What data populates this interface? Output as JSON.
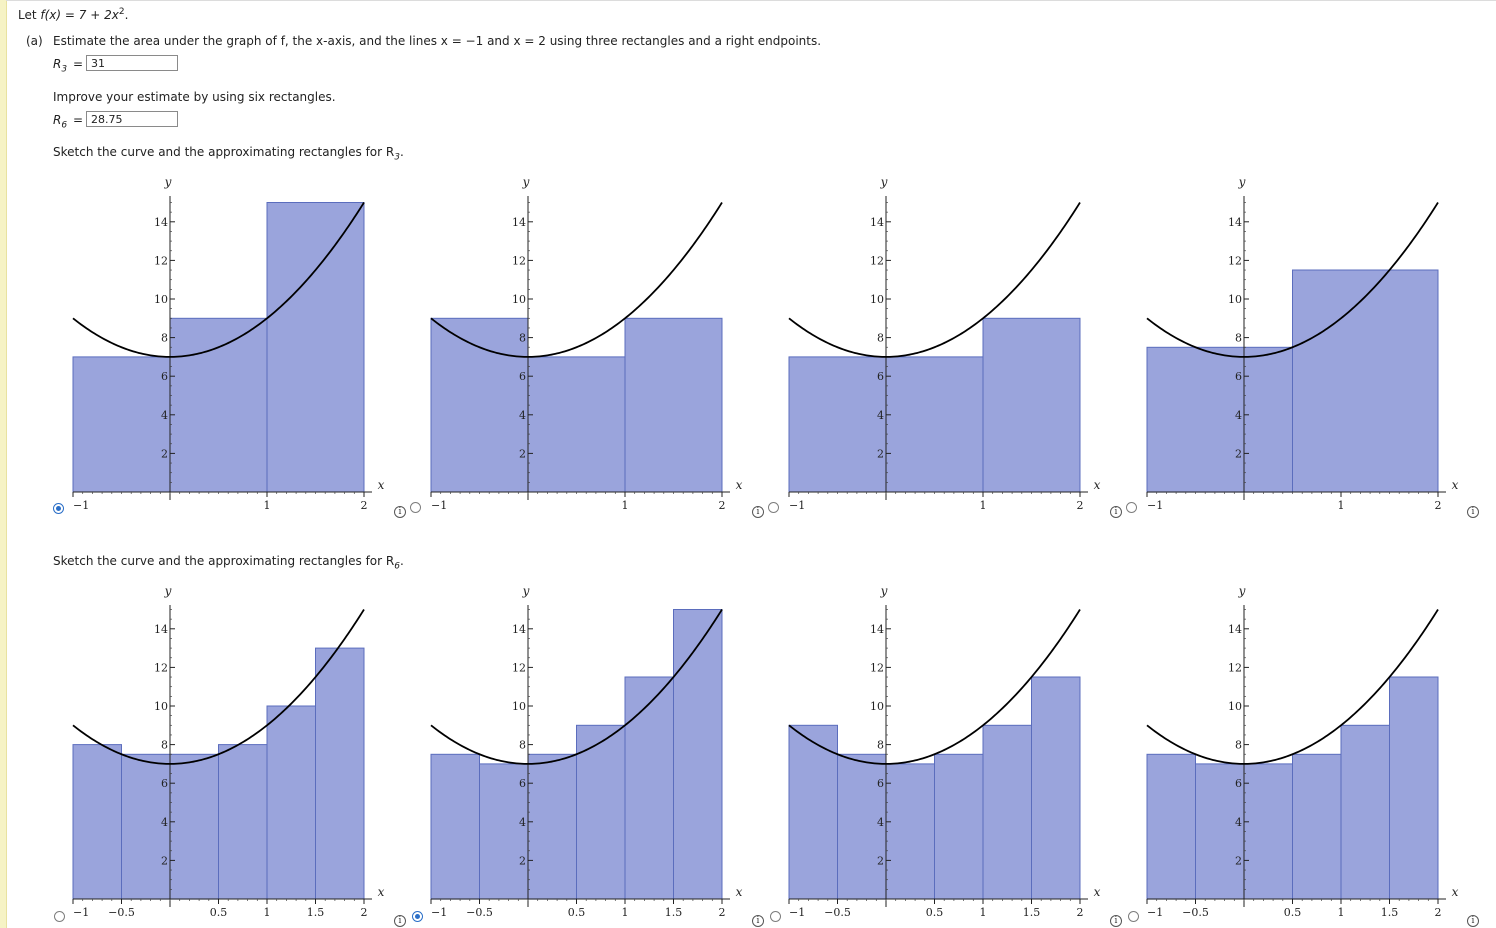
{
  "question": {
    "intro_prefix": "Let ",
    "intro_formula": "f(x) = 7 + 2x",
    "intro_exp": "2",
    "intro_suffix": ".",
    "part_a_label": "(a)",
    "part_a_text": "Estimate the area under the graph of f, the x-axis, and the lines x = −1 and x = 2 using three rectangles and a right endpoints.",
    "r3_label": "R",
    "r3_sub": "3",
    "r3_eq": "=",
    "r3_value": "31",
    "improve_text": "Improve your estimate by using six rectangles.",
    "r6_label": "R",
    "r6_sub": "6",
    "r6_eq": "=",
    "r6_value": "28.75",
    "sketch3_text": "Sketch the curve and the approximating rectangles for R",
    "sketch3_sub": "3",
    "sketch6_text": "Sketch the curve and the approximating rectangles for R",
    "sketch6_sub": "6",
    "period": "."
  },
  "info_glyph": "i",
  "colors": {
    "rect_fill": "#9aa4dc",
    "rect_stroke": "#5b6dbd",
    "curve": "#000000",
    "radio_selected": "#2b6fc8"
  },
  "chart_data": [
    {
      "type": "bar",
      "function": "7 + 2x^2",
      "xlim": [
        -1,
        2
      ],
      "ylim": [
        0,
        15
      ],
      "xlabel": "x",
      "ylabel": "y",
      "xticks": [
        -1,
        1,
        2
      ],
      "yticks": [
        2,
        4,
        6,
        8,
        10,
        12,
        14
      ],
      "rectangles": [
        {
          "x0": -1,
          "x1": 0,
          "height": 7
        },
        {
          "x0": 0,
          "x1": 1,
          "height": 9
        },
        {
          "x0": 1,
          "x1": 2,
          "height": 15
        }
      ],
      "selected": true
    },
    {
      "type": "bar",
      "function": "7 + 2x^2",
      "xlim": [
        -1,
        2
      ],
      "ylim": [
        0,
        15
      ],
      "xlabel": "x",
      "ylabel": "y",
      "xticks": [
        -1,
        1,
        2
      ],
      "yticks": [
        2,
        4,
        6,
        8,
        10,
        12,
        14
      ],
      "rectangles": [
        {
          "x0": -1,
          "x1": 0,
          "height": 9
        },
        {
          "x0": 0,
          "x1": 1,
          "height": 7
        },
        {
          "x0": 1,
          "x1": 2,
          "height": 9
        }
      ],
      "selected": false
    },
    {
      "type": "bar",
      "function": "7 + 2x^2",
      "xlim": [
        -1,
        2
      ],
      "ylim": [
        0,
        15
      ],
      "xlabel": "x",
      "ylabel": "y",
      "xticks": [
        -1,
        1,
        2
      ],
      "yticks": [
        2,
        4,
        6,
        8,
        10,
        12,
        14
      ],
      "rectangles": [
        {
          "x0": -1,
          "x1": 0,
          "height": 7
        },
        {
          "x0": 0,
          "x1": 1,
          "height": 7
        },
        {
          "x0": 1,
          "x1": 2,
          "height": 9
        }
      ],
      "selected": false
    },
    {
      "type": "bar",
      "function": "7 + 2x^2",
      "xlim": [
        -1,
        2
      ],
      "ylim": [
        0,
        15
      ],
      "xlabel": "x",
      "ylabel": "y",
      "xticks": [
        -1,
        1,
        2
      ],
      "yticks": [
        2,
        4,
        6,
        8,
        10,
        12,
        14
      ],
      "rectangles": [
        {
          "x0": -1,
          "x1": 0.5,
          "height": 7.5
        },
        {
          "x0": 0.5,
          "x1": 2,
          "height": 11.5
        }
      ],
      "selected": false
    },
    {
      "type": "bar",
      "function": "7 + 2x^2",
      "xlim": [
        -1,
        2
      ],
      "ylim": [
        0,
        15
      ],
      "xlabel": "x",
      "ylabel": "y",
      "xticks": [
        -1,
        -0.5,
        0.5,
        1,
        1.5,
        2
      ],
      "yticks": [
        2,
        4,
        6,
        8,
        10,
        12,
        14
      ],
      "rectangles": [
        {
          "x0": -1,
          "x1": -0.5,
          "height": 8
        },
        {
          "x0": -0.5,
          "x1": 0,
          "height": 7.5
        },
        {
          "x0": 0,
          "x1": 0.5,
          "height": 7.5
        },
        {
          "x0": 0.5,
          "x1": 1,
          "height": 8
        },
        {
          "x0": 1,
          "x1": 1.5,
          "height": 10
        },
        {
          "x0": 1.5,
          "x1": 2,
          "height": 13
        }
      ],
      "selected": false
    },
    {
      "type": "bar",
      "function": "7 + 2x^2",
      "xlim": [
        -1,
        2
      ],
      "ylim": [
        0,
        15
      ],
      "xlabel": "x",
      "ylabel": "y",
      "xticks": [
        -1,
        -0.5,
        0.5,
        1,
        1.5,
        2
      ],
      "yticks": [
        2,
        4,
        6,
        8,
        10,
        12,
        14
      ],
      "rectangles": [
        {
          "x0": -1,
          "x1": -0.5,
          "height": 7.5
        },
        {
          "x0": -0.5,
          "x1": 0,
          "height": 7
        },
        {
          "x0": 0,
          "x1": 0.5,
          "height": 7.5
        },
        {
          "x0": 0.5,
          "x1": 1,
          "height": 9
        },
        {
          "x0": 1,
          "x1": 1.5,
          "height": 11.5
        },
        {
          "x0": 1.5,
          "x1": 2,
          "height": 15
        }
      ],
      "selected": true
    },
    {
      "type": "bar",
      "function": "7 + 2x^2",
      "xlim": [
        -1,
        2
      ],
      "ylim": [
        0,
        15
      ],
      "xlabel": "x",
      "ylabel": "y",
      "xticks": [
        -1,
        -0.5,
        0.5,
        1,
        1.5,
        2
      ],
      "yticks": [
        2,
        4,
        6,
        8,
        10,
        12,
        14
      ],
      "rectangles": [
        {
          "x0": -1,
          "x1": -0.5,
          "height": 9
        },
        {
          "x0": -0.5,
          "x1": 0,
          "height": 7.5
        },
        {
          "x0": 0,
          "x1": 0.5,
          "height": 7
        },
        {
          "x0": 0.5,
          "x1": 1,
          "height": 7.5
        },
        {
          "x0": 1,
          "x1": 1.5,
          "height": 9
        },
        {
          "x0": 1.5,
          "x1": 2,
          "height": 11.5
        }
      ],
      "selected": false
    },
    {
      "type": "bar",
      "function": "7 + 2x^2",
      "xlim": [
        -1,
        2
      ],
      "ylim": [
        0,
        15
      ],
      "xlabel": "x",
      "ylabel": "y",
      "xticks": [
        -1,
        -0.5,
        0.5,
        1,
        1.5,
        2
      ],
      "yticks": [
        2,
        4,
        6,
        8,
        10,
        12,
        14
      ],
      "rectangles": [
        {
          "x0": -1,
          "x1": -0.5,
          "height": 7.5
        },
        {
          "x0": -0.5,
          "x1": 0,
          "height": 7
        },
        {
          "x0": 0,
          "x1": 0.5,
          "height": 7
        },
        {
          "x0": 0.5,
          "x1": 1,
          "height": 7.5
        },
        {
          "x0": 1,
          "x1": 1.5,
          "height": 9
        },
        {
          "x0": 1.5,
          "x1": 2,
          "height": 11.5
        }
      ],
      "selected": false
    }
  ]
}
